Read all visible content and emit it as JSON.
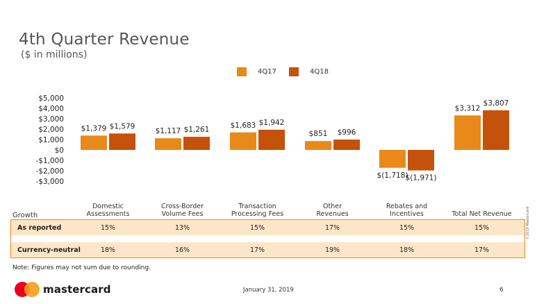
{
  "colors": {
    "series1": "#e8891a",
    "series2": "#c4520a",
    "table_bg": "#fde6c7",
    "table_border": "#e8891a"
  },
  "chart_data": {
    "type": "bar",
    "title": "4th Quarter Revenue",
    "subtitle": "($ in millions)",
    "categories": [
      "Domestic\nAssessments",
      "Cross-Border\nVolume Fees",
      "Transaction\nProcessing Fees",
      "Other\nRevenues",
      "Rebates and\nIncentives",
      "Total Net Revenue"
    ],
    "series": [
      {
        "name": "4Q17",
        "values": [
          1379,
          1117,
          1683,
          851,
          -1718,
          3312
        ],
        "labels": [
          "$1,379",
          "$1,117",
          "$1,683",
          "$851",
          "$(1,718)",
          "$3,312"
        ]
      },
      {
        "name": "4Q18",
        "values": [
          1579,
          1261,
          1942,
          996,
          -1971,
          3807
        ],
        "labels": [
          "$1,579",
          "$1,261",
          "$1,942",
          "$996",
          "$(1,971)",
          "$3,807"
        ]
      }
    ],
    "y_ticks": [
      5000,
      4000,
      3000,
      2000,
      1000,
      0,
      -1000,
      -2000,
      -3000
    ],
    "y_tick_labels": [
      "$5,000",
      "$4,000",
      "$3,000",
      "$2,000",
      "$1,000",
      "$0",
      "-$1,000",
      "-$2,000",
      "-$3,000"
    ],
    "ylim": [
      -3000,
      5000
    ],
    "grid": false,
    "legend_position": "top-center"
  },
  "table": {
    "header_label": "Growth",
    "rows": [
      {
        "label": "As reported",
        "values": [
          "15%",
          "13%",
          "15%",
          "17%",
          "15%",
          "15%"
        ]
      },
      {
        "label": "Currency-neutral",
        "values": [
          "18%",
          "16%",
          "17%",
          "19%",
          "18%",
          "17%"
        ]
      }
    ]
  },
  "footer": {
    "note": "Note: Figures may not sum due to rounding.",
    "logo_text": "mastercard",
    "date": "January 31, 2019",
    "page": "6",
    "copyright": "©2019 Mastercard"
  }
}
